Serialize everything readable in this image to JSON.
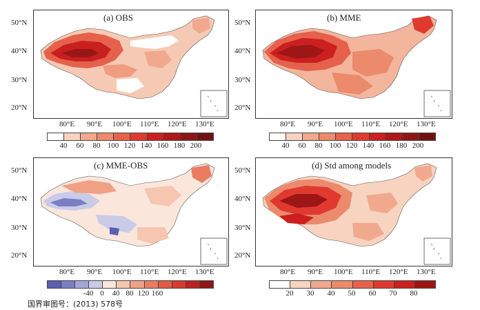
{
  "panels": [
    {
      "id": "a",
      "title": "(a) OBS",
      "lat_labels": [
        "50°N",
        "40°N",
        "30°N",
        "20°N"
      ],
      "lon_labels": [
        "80°E",
        "90°E",
        "100°E",
        "110°E",
        "120°E",
        "130°E"
      ],
      "colorbar": {
        "labels": [
          "40",
          "60",
          "80",
          "100",
          "120",
          "140",
          "160",
          "180",
          "200"
        ],
        "colors": [
          "#ffffff",
          "#f7d3c0",
          "#f1a98d",
          "#ec8a6c",
          "#e7624d",
          "#e03a30",
          "#cc1f1f",
          "#b01818",
          "#8e1616",
          "#701212"
        ]
      }
    },
    {
      "id": "b",
      "title": "(b) MME",
      "lat_labels": [
        "50°N",
        "40°N",
        "30°N",
        "20°N"
      ],
      "lon_labels": [
        "80°E",
        "90°E",
        "100°E",
        "110°E",
        "120°E",
        "130°E"
      ],
      "colorbar": {
        "labels": [
          "40",
          "60",
          "80",
          "100",
          "120",
          "140",
          "160",
          "180",
          "200"
        ],
        "colors": [
          "#ffffff",
          "#f7d3c0",
          "#f1a98d",
          "#ec8a6c",
          "#e7624d",
          "#e03a30",
          "#cc1f1f",
          "#b01818",
          "#8e1616",
          "#701212"
        ]
      }
    },
    {
      "id": "c",
      "title": "(c) MME-OBS",
      "lat_labels": [
        "50°N",
        "40°N",
        "30°N",
        "20°N"
      ],
      "lon_labels": [
        "80°E",
        "90°E",
        "100°E",
        "110°E",
        "120°E",
        "130°E"
      ],
      "colorbar": {
        "labels": [
          "-40",
          "0",
          "40",
          "80",
          "120",
          "160"
        ],
        "colors": [
          "#5a5fb0",
          "#7a7fc4",
          "#a3a6d6",
          "#c9cbe8",
          "#fbe6dc",
          "#f6c6b0",
          "#f0a085",
          "#ea7c62",
          "#e35a45",
          "#d83a30",
          "#bd2222",
          "#8e1616"
        ]
      }
    },
    {
      "id": "d",
      "title": "(d) Std among models",
      "lat_labels": [
        "50°N",
        "40°N",
        "30°N",
        "20°N"
      ],
      "lon_labels": [
        "80°E",
        "90°E",
        "100°E",
        "110°E",
        "120°E",
        "130°E"
      ],
      "colorbar": {
        "labels": [
          "20",
          "30",
          "40",
          "50",
          "60",
          "70",
          "80"
        ],
        "colors": [
          "#ffffff",
          "#f7d3c0",
          "#f1a98d",
          "#ec8a6c",
          "#e7624d",
          "#e03a30",
          "#cc1f1f",
          "#9e1515"
        ]
      }
    }
  ],
  "footer": "国界审图号：(2013) 578号"
}
